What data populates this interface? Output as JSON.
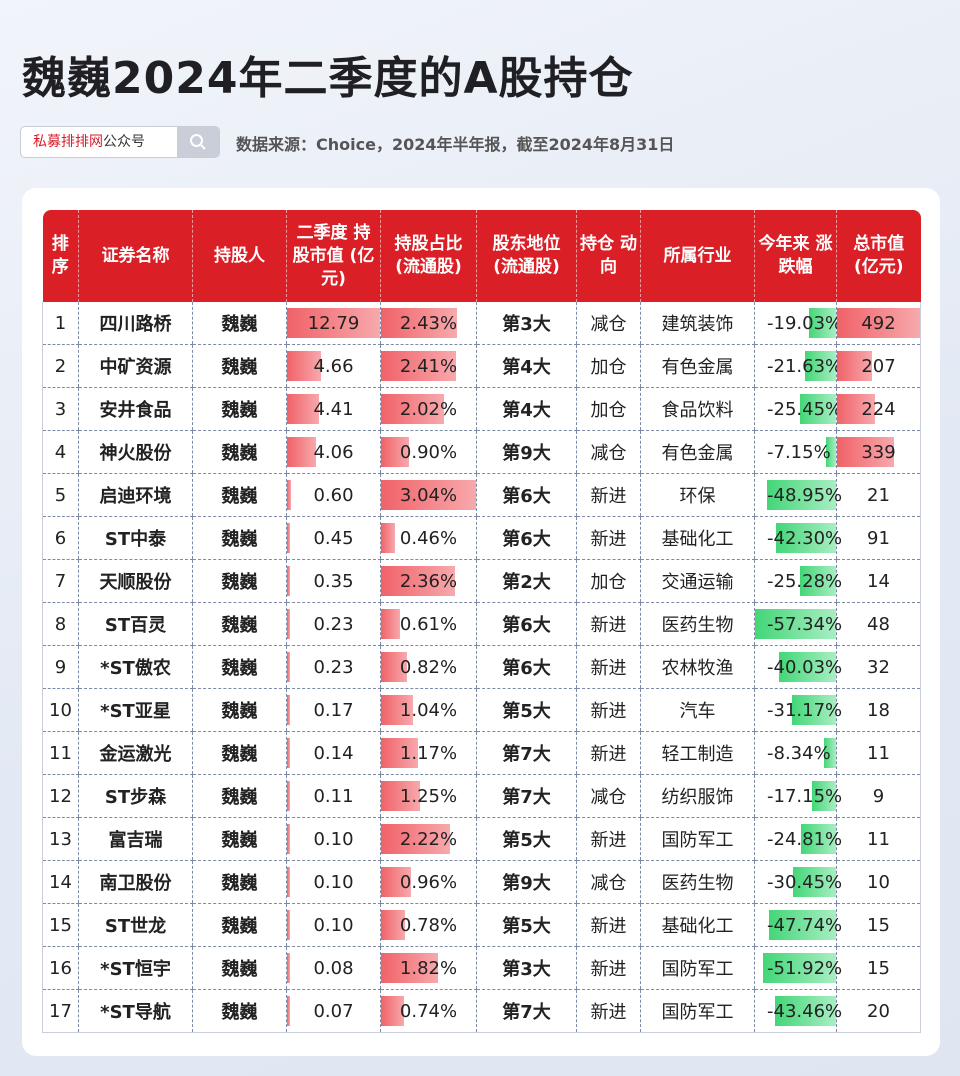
{
  "title": "魏巍2024年二季度的A股持仓",
  "search": {
    "brand": "私募排排网",
    "suffix": "公众号"
  },
  "source": "数据来源：Choice，2024年半年报，截至2024年8月31日",
  "colors": {
    "header": "#db1f27",
    "bar_red": "#f06268",
    "bar_green": "#43d677"
  },
  "columns": [
    "排序",
    "证券名称",
    "持股人",
    "二季度 持股市值 (亿元)",
    "持股占比 (流通股)",
    "股东地位 (流通股)",
    "持仓 动向",
    "所属行业",
    "今年来 涨跌幅",
    "总市值 (亿元)"
  ],
  "rows": [
    {
      "rank": "1",
      "name": "四川路桥",
      "holder": "魏巍",
      "value": "12.79",
      "value_num": 12.79,
      "ratio": "2.43%",
      "ratio_num": 2.43,
      "position": "第3大",
      "action": "减仓",
      "industry": "建筑装饰",
      "ytd": "-19.03%",
      "ytd_num": -19.03,
      "cap": "492",
      "cap_num": 492
    },
    {
      "rank": "2",
      "name": "中矿资源",
      "holder": "魏巍",
      "value": "4.66",
      "value_num": 4.66,
      "ratio": "2.41%",
      "ratio_num": 2.41,
      "position": "第4大",
      "action": "加仓",
      "industry": "有色金属",
      "ytd": "-21.63%",
      "ytd_num": -21.63,
      "cap": "207",
      "cap_num": 207
    },
    {
      "rank": "3",
      "name": "安井食品",
      "holder": "魏巍",
      "value": "4.41",
      "value_num": 4.41,
      "ratio": "2.02%",
      "ratio_num": 2.02,
      "position": "第4大",
      "action": "加仓",
      "industry": "食品饮料",
      "ytd": "-25.45%",
      "ytd_num": -25.45,
      "cap": "224",
      "cap_num": 224
    },
    {
      "rank": "4",
      "name": "神火股份",
      "holder": "魏巍",
      "value": "4.06",
      "value_num": 4.06,
      "ratio": "0.90%",
      "ratio_num": 0.9,
      "position": "第9大",
      "action": "减仓",
      "industry": "有色金属",
      "ytd": "-7.15%",
      "ytd_num": -7.15,
      "cap": "339",
      "cap_num": 339
    },
    {
      "rank": "5",
      "name": "启迪环境",
      "holder": "魏巍",
      "value": "0.60",
      "value_num": 0.6,
      "ratio": "3.04%",
      "ratio_num": 3.04,
      "position": "第6大",
      "action": "新进",
      "industry": "环保",
      "ytd": "-48.95%",
      "ytd_num": -48.95,
      "cap": "21",
      "cap_num": 21
    },
    {
      "rank": "6",
      "name": "ST中泰",
      "holder": "魏巍",
      "value": "0.45",
      "value_num": 0.45,
      "ratio": "0.46%",
      "ratio_num": 0.46,
      "position": "第6大",
      "action": "新进",
      "industry": "基础化工",
      "ytd": "-42.30%",
      "ytd_num": -42.3,
      "cap": "91",
      "cap_num": 91
    },
    {
      "rank": "7",
      "name": "天顺股份",
      "holder": "魏巍",
      "value": "0.35",
      "value_num": 0.35,
      "ratio": "2.36%",
      "ratio_num": 2.36,
      "position": "第2大",
      "action": "加仓",
      "industry": "交通运输",
      "ytd": "-25.28%",
      "ytd_num": -25.28,
      "cap": "14",
      "cap_num": 14
    },
    {
      "rank": "8",
      "name": "ST百灵",
      "holder": "魏巍",
      "value": "0.23",
      "value_num": 0.23,
      "ratio": "0.61%",
      "ratio_num": 0.61,
      "position": "第6大",
      "action": "新进",
      "industry": "医药生物",
      "ytd": "-57.34%",
      "ytd_num": -57.34,
      "cap": "48",
      "cap_num": 48
    },
    {
      "rank": "9",
      "name": "*ST傲农",
      "holder": "魏巍",
      "value": "0.23",
      "value_num": 0.23,
      "ratio": "0.82%",
      "ratio_num": 0.82,
      "position": "第6大",
      "action": "新进",
      "industry": "农林牧渔",
      "ytd": "-40.03%",
      "ytd_num": -40.03,
      "cap": "32",
      "cap_num": 32
    },
    {
      "rank": "10",
      "name": "*ST亚星",
      "holder": "魏巍",
      "value": "0.17",
      "value_num": 0.17,
      "ratio": "1.04%",
      "ratio_num": 1.04,
      "position": "第5大",
      "action": "新进",
      "industry": "汽车",
      "ytd": "-31.17%",
      "ytd_num": -31.17,
      "cap": "18",
      "cap_num": 18
    },
    {
      "rank": "11",
      "name": "金运激光",
      "holder": "魏巍",
      "value": "0.14",
      "value_num": 0.14,
      "ratio": "1.17%",
      "ratio_num": 1.17,
      "position": "第7大",
      "action": "新进",
      "industry": "轻工制造",
      "ytd": "-8.34%",
      "ytd_num": -8.34,
      "cap": "11",
      "cap_num": 11
    },
    {
      "rank": "12",
      "name": "ST步森",
      "holder": "魏巍",
      "value": "0.11",
      "value_num": 0.11,
      "ratio": "1.25%",
      "ratio_num": 1.25,
      "position": "第7大",
      "action": "减仓",
      "industry": "纺织服饰",
      "ytd": "-17.15%",
      "ytd_num": -17.15,
      "cap": "9",
      "cap_num": 9
    },
    {
      "rank": "13",
      "name": "富吉瑞",
      "holder": "魏巍",
      "value": "0.10",
      "value_num": 0.1,
      "ratio": "2.22%",
      "ratio_num": 2.22,
      "position": "第5大",
      "action": "新进",
      "industry": "国防军工",
      "ytd": "-24.81%",
      "ytd_num": -24.81,
      "cap": "11",
      "cap_num": 11
    },
    {
      "rank": "14",
      "name": "南卫股份",
      "holder": "魏巍",
      "value": "0.10",
      "value_num": 0.1,
      "ratio": "0.96%",
      "ratio_num": 0.96,
      "position": "第9大",
      "action": "减仓",
      "industry": "医药生物",
      "ytd": "-30.45%",
      "ytd_num": -30.45,
      "cap": "10",
      "cap_num": 10
    },
    {
      "rank": "15",
      "name": "ST世龙",
      "holder": "魏巍",
      "value": "0.10",
      "value_num": 0.1,
      "ratio": "0.78%",
      "ratio_num": 0.78,
      "position": "第5大",
      "action": "新进",
      "industry": "基础化工",
      "ytd": "-47.74%",
      "ytd_num": -47.74,
      "cap": "15",
      "cap_num": 15
    },
    {
      "rank": "16",
      "name": "*ST恒宇",
      "holder": "魏巍",
      "value": "0.08",
      "value_num": 0.08,
      "ratio": "1.82%",
      "ratio_num": 1.82,
      "position": "第3大",
      "action": "新进",
      "industry": "国防军工",
      "ytd": "-51.92%",
      "ytd_num": -51.92,
      "cap": "15",
      "cap_num": 15
    },
    {
      "rank": "17",
      "name": "*ST导航",
      "holder": "魏巍",
      "value": "0.07",
      "value_num": 0.07,
      "ratio": "0.74%",
      "ratio_num": 0.74,
      "position": "第7大",
      "action": "新进",
      "industry": "国防军工",
      "ytd": "-43.46%",
      "ytd_num": -43.46,
      "cap": "20",
      "cap_num": 20
    }
  ]
}
